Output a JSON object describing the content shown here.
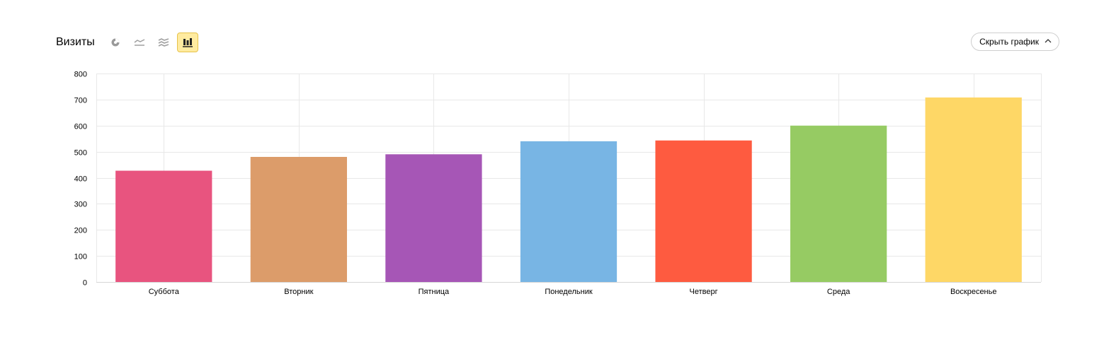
{
  "header": {
    "title": "Визиты",
    "chart_types": [
      {
        "name": "pie-chart-icon",
        "active": false
      },
      {
        "name": "line-chart-icon",
        "active": false
      },
      {
        "name": "area-chart-icon",
        "active": false
      },
      {
        "name": "bar-chart-icon",
        "active": true
      }
    ],
    "hide_button_label": "Скрыть график"
  },
  "colors": {
    "accent_active_bg": "#ffeba0",
    "grid": "#e8e8e8"
  },
  "chart_data": {
    "type": "bar",
    "title": "",
    "xlabel": "",
    "ylabel": "",
    "categories": [
      "Суббота",
      "Вторник",
      "Пятница",
      "Понедельник",
      "Четверг",
      "Среда",
      "Воскресенье"
    ],
    "values": [
      427,
      480,
      490,
      540,
      543,
      600,
      708
    ],
    "colors": [
      "#e8547f",
      "#dc9c6a",
      "#a656b6",
      "#78b5e4",
      "#fe5b40",
      "#96cb63",
      "#fed766"
    ],
    "ylim": [
      0,
      800
    ],
    "yticks": [
      0,
      100,
      200,
      300,
      400,
      500,
      600,
      700,
      800
    ],
    "grid": true,
    "legend": "none"
  }
}
